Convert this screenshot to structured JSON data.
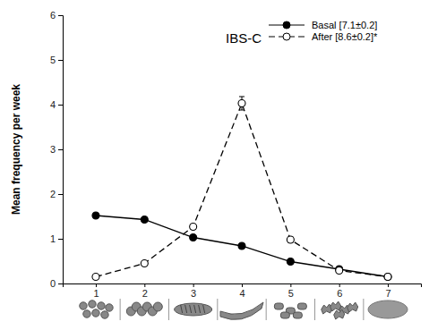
{
  "chart_data": {
    "type": "line",
    "title": "IBS-C",
    "y_label": "Mean frequency per week",
    "x": [
      1,
      2,
      3,
      4,
      5,
      6,
      7
    ],
    "xlim": [
      0.32,
      7.68
    ],
    "xticks": [
      1,
      2,
      3,
      4,
      5,
      6,
      7
    ],
    "ylim": [
      0,
      6
    ],
    "yticks": [
      0,
      1,
      2,
      3,
      4,
      5,
      6
    ],
    "legend": "upper right",
    "series": [
      {
        "name": "Basal [7.1±0.2]",
        "color": "#000000",
        "marker": "filled-circle",
        "line_style": "solid",
        "values": [
          1.52,
          1.43,
          1.03,
          0.84,
          0.49,
          0.32,
          0.15
        ],
        "errors": [
          0.05,
          0.04,
          0.04,
          0.04,
          0.03,
          0.03,
          0.02
        ]
      },
      {
        "name": "After [8.6±0.2]*",
        "color": "#000000",
        "marker": "open-circle",
        "line_style": "dashed",
        "values": [
          0.15,
          0.45,
          1.27,
          4.03,
          0.98,
          0.29,
          0.15
        ],
        "errors": [
          0.03,
          0.04,
          0.06,
          0.15,
          0.06,
          0.03,
          0.02
        ]
      }
    ]
  }
}
